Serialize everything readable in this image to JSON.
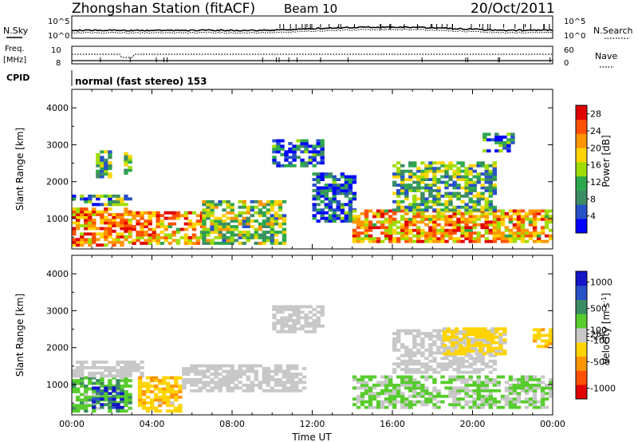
{
  "header": {
    "station": "Zhongshan Station (fitACF)",
    "beam": "Beam 10",
    "date": "20/Oct/2011"
  },
  "strip_labels": {
    "nsky": "N.Sky",
    "nsearch": "N.Search",
    "freq_line1": "Freq.",
    "freq_line2": "[MHz]",
    "nave": "Nave",
    "cpid": "CPID",
    "cpid_value": "normal (fast stereo) 153"
  },
  "strip_ticks": {
    "noise_left": [
      "10^5",
      "10^0"
    ],
    "noise_right": [
      "10^5",
      "10^0"
    ],
    "freq_left": [
      "10",
      "8"
    ],
    "nave_right": [
      "60",
      "0"
    ]
  },
  "colors": {
    "power_scale": [
      "#0000ff",
      "#2850c8",
      "#3c8c64",
      "#2ea84e",
      "#a0dc00",
      "#ffd400",
      "#ff9600",
      "#ff5000",
      "#e00000"
    ],
    "velocity_scale": [
      "#e00000",
      "#ff5000",
      "#ff9600",
      "#ffd400",
      "#c8c8c8",
      "#58cc2e",
      "#3c8c64",
      "#2850c8",
      "#1414c8"
    ]
  },
  "chart_data": [
    {
      "type": "heatmap",
      "title": "",
      "xlabel": "Time UT",
      "ylabel": "Slant Range [km]",
      "x_range": [
        "00:00",
        "00:00"
      ],
      "x_ticks": [
        "00:00",
        "04:00",
        "08:00",
        "12:00",
        "16:00",
        "20:00",
        "00:00"
      ],
      "ylim": [
        180,
        4500
      ],
      "y_ticks": [
        1000,
        2000,
        3000,
        4000
      ],
      "colorbar": {
        "label": "Power [dB]",
        "ticks": [
          4,
          8,
          12,
          16,
          20,
          24,
          28
        ],
        "range": [
          0,
          30
        ]
      },
      "echo_regions": [
        {
          "t": [
            0.0,
            3.0
          ],
          "r": [
            250,
            1300
          ],
          "value": 22
        },
        {
          "t": [
            0.0,
            3.0
          ],
          "r": [
            1350,
            1650
          ],
          "value": 10
        },
        {
          "t": [
            1.2,
            1.8
          ],
          "r": [
            2100,
            2800
          ],
          "value": 12
        },
        {
          "t": [
            2.6,
            2.9
          ],
          "r": [
            2200,
            2800
          ],
          "value": 14
        },
        {
          "t": [
            3.0,
            6.5
          ],
          "r": [
            300,
            1200
          ],
          "value": 21
        },
        {
          "t": [
            6.5,
            10.5
          ],
          "r": [
            300,
            1500
          ],
          "value": 14
        },
        {
          "t": [
            10.0,
            12.5
          ],
          "r": [
            2400,
            3100
          ],
          "value": 6
        },
        {
          "t": [
            12.0,
            14.0
          ],
          "r": [
            900,
            2200
          ],
          "value": 6
        },
        {
          "t": [
            14.0,
            23.8
          ],
          "r": [
            350,
            1200
          ],
          "value": 21
        },
        {
          "t": [
            16.0,
            21.0
          ],
          "r": [
            1200,
            2500
          ],
          "value": 12
        },
        {
          "t": [
            20.5,
            22.0
          ],
          "r": [
            2800,
            3300
          ],
          "value": 8
        }
      ]
    },
    {
      "type": "heatmap",
      "title": "",
      "xlabel": "Time UT",
      "ylabel": "Slant Range [km]",
      "x_range": [
        "00:00",
        "00:00"
      ],
      "x_ticks": [
        "00:00",
        "04:00",
        "08:00",
        "12:00",
        "16:00",
        "20:00",
        "00:00"
      ],
      "ylim": [
        180,
        4500
      ],
      "y_ticks": [
        1000,
        2000,
        3000,
        4000
      ],
      "colorbar": {
        "label": "Velocity [m s^-1]",
        "ticks": [
          -1000,
          -500,
          -100,
          -25,
          25,
          100,
          500,
          1000
        ],
        "range": [
          -1200,
          1200
        ]
      },
      "echo_regions": [
        {
          "t": [
            0.0,
            3.0
          ],
          "r": [
            250,
            1200
          ],
          "value": 300
        },
        {
          "t": [
            1.0,
            2.6
          ],
          "r": [
            350,
            900
          ],
          "value": 800
        },
        {
          "t": [
            0.0,
            3.5
          ],
          "r": [
            1200,
            1600
          ],
          "value": 0
        },
        {
          "t": [
            3.3,
            5.5
          ],
          "r": [
            250,
            1200
          ],
          "value": -300
        },
        {
          "t": [
            5.5,
            11.5
          ],
          "r": [
            800,
            1500
          ],
          "value": 0
        },
        {
          "t": [
            10.0,
            12.5
          ],
          "r": [
            2400,
            3100
          ],
          "value": -30
        },
        {
          "t": [
            14.0,
            23.8
          ],
          "r": [
            350,
            1200
          ],
          "value": 150
        },
        {
          "t": [
            16.0,
            21.0
          ],
          "r": [
            1300,
            2500
          ],
          "value": 20
        },
        {
          "t": [
            18.5,
            21.5
          ],
          "r": [
            1800,
            2500
          ],
          "value": -200
        },
        {
          "t": [
            23.0,
            23.8
          ],
          "r": [
            2000,
            2500
          ],
          "value": -300
        }
      ]
    }
  ]
}
